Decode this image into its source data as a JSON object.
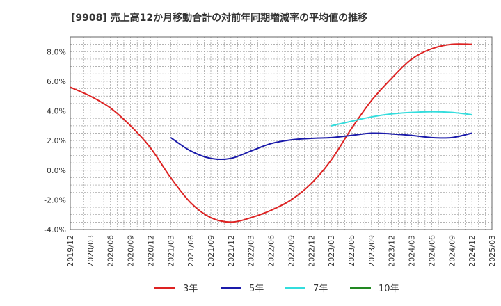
{
  "chart_data": {
    "type": "line",
    "title": "[9908]  売上高12か月移動合計の対前年同期増減率の平均値の推移",
    "xlabel": "",
    "ylabel": "",
    "ylim": [
      -4.0,
      9.0
    ],
    "yticks": [
      "-4.0%",
      "-2.0%",
      "0.0%",
      "2.0%",
      "4.0%",
      "6.0%",
      "8.0%"
    ],
    "ytick_values": [
      -4,
      -2,
      0,
      2,
      4,
      6,
      8
    ],
    "xticks": [
      "2019/12",
      "2020/03",
      "2020/06",
      "2020/09",
      "2020/12",
      "2021/03",
      "2021/06",
      "2021/09",
      "2021/12",
      "2022/03",
      "2022/06",
      "2022/09",
      "2022/12",
      "2023/03",
      "2023/06",
      "2023/09",
      "2023/12",
      "2024/03",
      "2024/06",
      "2024/09",
      "2024/12",
      "2025/03"
    ],
    "grid": true,
    "legend_position": "bottom",
    "series": [
      {
        "name": "3年",
        "color": "#dd2222",
        "x": [
          "2019/12",
          "2020/03",
          "2020/06",
          "2020/09",
          "2020/12",
          "2021/03",
          "2021/06",
          "2021/09",
          "2021/12",
          "2022/03",
          "2022/06",
          "2022/09",
          "2022/12",
          "2023/03",
          "2023/06",
          "2023/09",
          "2023/12",
          "2024/03",
          "2024/06",
          "2024/09",
          "2024/12"
        ],
        "values": [
          5.6,
          5.0,
          4.2,
          3.0,
          1.5,
          -0.5,
          -2.2,
          -3.2,
          -3.5,
          -3.2,
          -2.7,
          -2.0,
          -0.9,
          0.7,
          2.8,
          4.7,
          6.2,
          7.5,
          8.2,
          8.5,
          8.5
        ]
      },
      {
        "name": "5年",
        "color": "#1a1aaa",
        "x": [
          "2021/03",
          "2021/06",
          "2021/09",
          "2021/12",
          "2022/03",
          "2022/06",
          "2022/09",
          "2022/12",
          "2023/03",
          "2023/06",
          "2023/09",
          "2023/12",
          "2024/03",
          "2024/06",
          "2024/09",
          "2024/12"
        ],
        "values": [
          2.2,
          1.3,
          0.8,
          0.8,
          1.3,
          1.8,
          2.05,
          2.15,
          2.2,
          2.35,
          2.5,
          2.45,
          2.35,
          2.2,
          2.2,
          2.5
        ]
      },
      {
        "name": "7年",
        "color": "#33dddd",
        "x": [
          "2023/03",
          "2023/06",
          "2023/09",
          "2023/12",
          "2024/03",
          "2024/06",
          "2024/09",
          "2024/12"
        ],
        "values": [
          3.0,
          3.3,
          3.6,
          3.8,
          3.9,
          3.95,
          3.9,
          3.75
        ]
      },
      {
        "name": "10年",
        "color": "#228822",
        "x": [],
        "values": []
      }
    ]
  }
}
